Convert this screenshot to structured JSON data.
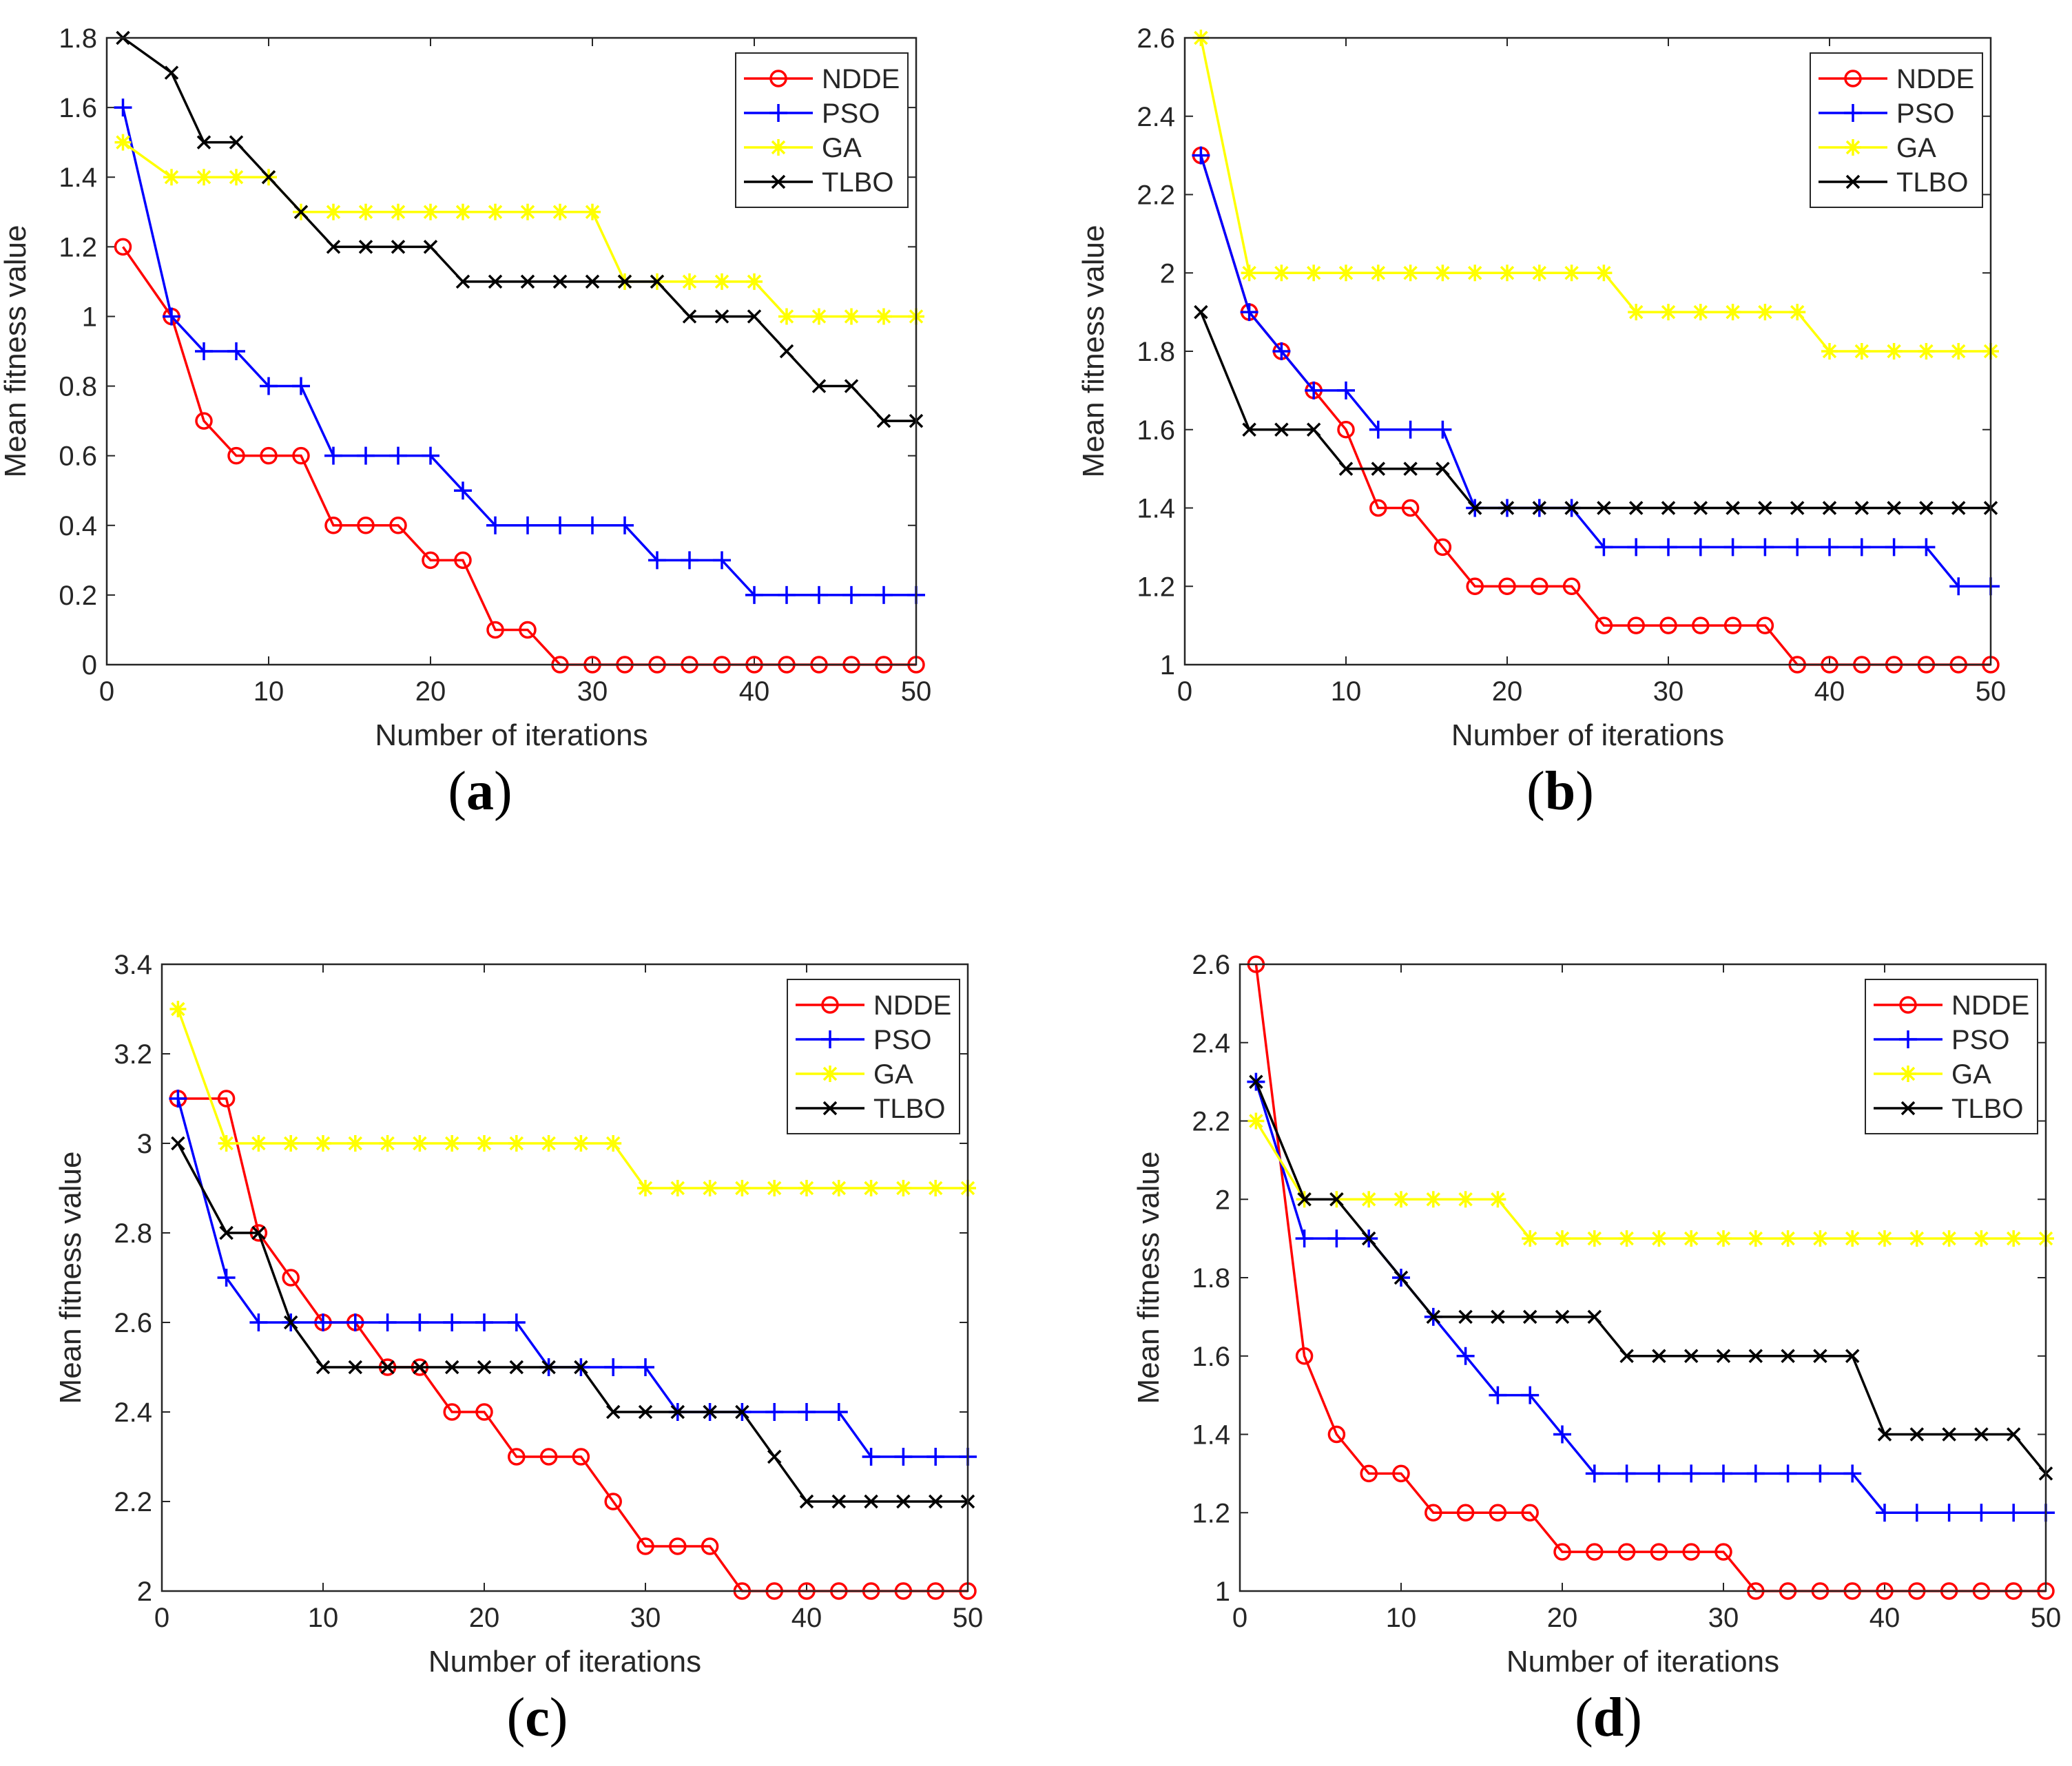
{
  "chart_data": [
    {
      "panel": "a",
      "caption": {
        "open": "(",
        "letter": "a",
        "close": ")"
      },
      "type": "line",
      "xlabel": "Number of iterations",
      "ylabel": "Mean fitness value",
      "xlim": [
        0,
        50
      ],
      "ylim": [
        0,
        1.8
      ],
      "xticks": [
        0,
        10,
        20,
        30,
        40,
        50
      ],
      "yticks": [
        0,
        0.2,
        0.4,
        0.6,
        0.8,
        1,
        1.2,
        1.4,
        1.6,
        1.8
      ],
      "ytick_labels": [
        "0",
        "0.2",
        "0.4",
        "0.6",
        "0.8",
        "1",
        "1.2",
        "1.4",
        "1.6",
        "1.8"
      ],
      "legend_position": "top-right",
      "x": [
        1,
        4,
        6,
        8,
        10,
        12,
        14,
        16,
        18,
        20,
        22,
        24,
        26,
        28,
        30,
        32,
        34,
        36,
        38,
        40,
        42,
        44,
        46,
        48,
        50
      ],
      "series": [
        {
          "name": "NDDE",
          "color": "#ff0000",
          "marker": "circle",
          "values": [
            1.2,
            1.0,
            0.7,
            0.6,
            0.6,
            0.6,
            0.4,
            0.4,
            0.4,
            0.3,
            0.3,
            0.1,
            0.1,
            0,
            0,
            0,
            0,
            0,
            0,
            0,
            0,
            0,
            0,
            0,
            0
          ]
        },
        {
          "name": "PSO",
          "color": "#0000ff",
          "marker": "plus",
          "values": [
            1.6,
            1.0,
            0.9,
            0.9,
            0.8,
            0.8,
            0.6,
            0.6,
            0.6,
            0.6,
            0.5,
            0.4,
            0.4,
            0.4,
            0.4,
            0.4,
            0.3,
            0.3,
            0.3,
            0.2,
            0.2,
            0.2,
            0.2,
            0.2,
            0.2
          ]
        },
        {
          "name": "GA",
          "color": "#ffff00",
          "marker": "star",
          "values": [
            1.5,
            1.4,
            1.4,
            1.4,
            1.4,
            1.3,
            1.3,
            1.3,
            1.3,
            1.3,
            1.3,
            1.3,
            1.3,
            1.3,
            1.3,
            1.1,
            1.1,
            1.1,
            1.1,
            1.1,
            1.0,
            1.0,
            1.0,
            1.0,
            1.0
          ]
        },
        {
          "name": "TLBO",
          "color": "#000000",
          "marker": "x",
          "values": [
            1.8,
            1.7,
            1.5,
            1.5,
            1.4,
            1.3,
            1.2,
            1.2,
            1.2,
            1.2,
            1.1,
            1.1,
            1.1,
            1.1,
            1.1,
            1.1,
            1.1,
            1.0,
            1.0,
            1.0,
            0.9,
            0.8,
            0.8,
            0.7,
            0.7
          ]
        }
      ]
    },
    {
      "panel": "b",
      "caption": {
        "open": "(",
        "letter": "b",
        "close": ")"
      },
      "type": "line",
      "xlabel": "Number of iterations",
      "ylabel": "Mean fitness value",
      "xlim": [
        0,
        50
      ],
      "ylim": [
        1,
        2.6
      ],
      "xticks": [
        0,
        10,
        20,
        30,
        40,
        50
      ],
      "yticks": [
        1,
        1.2,
        1.4,
        1.6,
        1.8,
        2,
        2.2,
        2.4,
        2.6
      ],
      "ytick_labels": [
        "1",
        "1.2",
        "1.4",
        "1.6",
        "1.8",
        "2",
        "2.2",
        "2.4",
        "2.6"
      ],
      "legend_position": "top-right",
      "x": [
        1,
        4,
        6,
        8,
        10,
        12,
        14,
        16,
        18,
        20,
        22,
        24,
        26,
        28,
        30,
        32,
        34,
        36,
        38,
        40,
        42,
        44,
        46,
        48,
        50
      ],
      "series": [
        {
          "name": "NDDE",
          "color": "#ff0000",
          "marker": "circle",
          "values": [
            2.3,
            1.9,
            1.8,
            1.7,
            1.6,
            1.4,
            1.4,
            1.3,
            1.2,
            1.2,
            1.2,
            1.2,
            1.1,
            1.1,
            1.1,
            1.1,
            1.1,
            1.1,
            1.0,
            1.0,
            1.0,
            1.0,
            1.0,
            1.0,
            1.0
          ]
        },
        {
          "name": "PSO",
          "color": "#0000ff",
          "marker": "plus",
          "values": [
            2.3,
            1.9,
            1.8,
            1.7,
            1.7,
            1.6,
            1.6,
            1.6,
            1.4,
            1.4,
            1.4,
            1.4,
            1.3,
            1.3,
            1.3,
            1.3,
            1.3,
            1.3,
            1.3,
            1.3,
            1.3,
            1.3,
            1.3,
            1.2,
            1.2
          ]
        },
        {
          "name": "GA",
          "color": "#ffff00",
          "marker": "star",
          "values": [
            2.6,
            2.0,
            2.0,
            2.0,
            2.0,
            2.0,
            2.0,
            2.0,
            2.0,
            2.0,
            2.0,
            2.0,
            2.0,
            1.9,
            1.9,
            1.9,
            1.9,
            1.9,
            1.9,
            1.8,
            1.8,
            1.8,
            1.8,
            1.8,
            1.8
          ]
        },
        {
          "name": "TLBO",
          "color": "#000000",
          "marker": "x",
          "values": [
            1.9,
            1.6,
            1.6,
            1.6,
            1.5,
            1.5,
            1.5,
            1.5,
            1.4,
            1.4,
            1.4,
            1.4,
            1.4,
            1.4,
            1.4,
            1.4,
            1.4,
            1.4,
            1.4,
            1.4,
            1.4,
            1.4,
            1.4,
            1.4,
            1.4
          ]
        }
      ]
    },
    {
      "panel": "c",
      "caption": {
        "open": "(",
        "letter": "c",
        "close": ")"
      },
      "type": "line",
      "xlabel": "Number of iterations",
      "ylabel": "Mean fitness value",
      "xlim": [
        0,
        50
      ],
      "ylim": [
        2,
        3.4
      ],
      "xticks": [
        0,
        10,
        20,
        30,
        40,
        50
      ],
      "yticks": [
        2,
        2.2,
        2.4,
        2.6,
        2.8,
        3,
        3.2,
        3.4
      ],
      "ytick_labels": [
        "2",
        "2.2",
        "2.4",
        "2.6",
        "2.8",
        "3",
        "3.2",
        "3.4"
      ],
      "legend_position": "top-right",
      "x": [
        1,
        4,
        6,
        8,
        10,
        12,
        14,
        16,
        18,
        20,
        22,
        24,
        26,
        28,
        30,
        32,
        34,
        36,
        38,
        40,
        42,
        44,
        46,
        48,
        50
      ],
      "series": [
        {
          "name": "NDDE",
          "color": "#ff0000",
          "marker": "circle",
          "values": [
            3.1,
            3.1,
            2.8,
            2.7,
            2.6,
            2.6,
            2.5,
            2.5,
            2.4,
            2.4,
            2.3,
            2.3,
            2.3,
            2.2,
            2.1,
            2.1,
            2.1,
            2.0,
            2.0,
            2.0,
            2.0,
            2.0,
            2.0,
            2.0,
            2.0
          ]
        },
        {
          "name": "PSO",
          "color": "#0000ff",
          "marker": "plus",
          "values": [
            3.1,
            2.7,
            2.6,
            2.6,
            2.6,
            2.6,
            2.6,
            2.6,
            2.6,
            2.6,
            2.6,
            2.5,
            2.5,
            2.5,
            2.5,
            2.4,
            2.4,
            2.4,
            2.4,
            2.4,
            2.4,
            2.3,
            2.3,
            2.3,
            2.3
          ]
        },
        {
          "name": "GA",
          "color": "#ffff00",
          "marker": "star",
          "values": [
            3.3,
            3.0,
            3.0,
            3.0,
            3.0,
            3.0,
            3.0,
            3.0,
            3.0,
            3.0,
            3.0,
            3.0,
            3.0,
            3.0,
            2.9,
            2.9,
            2.9,
            2.9,
            2.9,
            2.9,
            2.9,
            2.9,
            2.9,
            2.9,
            2.9
          ]
        },
        {
          "name": "TLBO",
          "color": "#000000",
          "marker": "x",
          "values": [
            3.0,
            2.8,
            2.8,
            2.6,
            2.5,
            2.5,
            2.5,
            2.5,
            2.5,
            2.5,
            2.5,
            2.5,
            2.5,
            2.4,
            2.4,
            2.4,
            2.4,
            2.4,
            2.3,
            2.2,
            2.2,
            2.2,
            2.2,
            2.2,
            2.2
          ]
        }
      ]
    },
    {
      "panel": "d",
      "caption": {
        "open": "(",
        "letter": "d",
        "close": ")"
      },
      "type": "line",
      "xlabel": "Number of iterations",
      "ylabel": "Mean fitness value",
      "xlim": [
        0,
        50
      ],
      "ylim": [
        1,
        2.6
      ],
      "xticks": [
        0,
        10,
        20,
        30,
        40,
        50
      ],
      "yticks": [
        1,
        1.2,
        1.4,
        1.6,
        1.8,
        2,
        2.2,
        2.4,
        2.6
      ],
      "ytick_labels": [
        "1",
        "1.2",
        "1.4",
        "1.6",
        "1.8",
        "2",
        "2.2",
        "2.4",
        "2.6"
      ],
      "legend_position": "top-right",
      "x": [
        1,
        4,
        6,
        8,
        10,
        12,
        14,
        16,
        18,
        20,
        22,
        24,
        26,
        28,
        30,
        32,
        34,
        36,
        38,
        40,
        42,
        44,
        46,
        48,
        50
      ],
      "series": [
        {
          "name": "NDDE",
          "color": "#ff0000",
          "marker": "circle",
          "values": [
            2.6,
            1.6,
            1.4,
            1.3,
            1.3,
            1.2,
            1.2,
            1.2,
            1.2,
            1.1,
            1.1,
            1.1,
            1.1,
            1.1,
            1.1,
            1.0,
            1.0,
            1.0,
            1.0,
            1.0,
            1.0,
            1.0,
            1.0,
            1.0,
            1.0
          ]
        },
        {
          "name": "PSO",
          "color": "#0000ff",
          "marker": "plus",
          "values": [
            2.3,
            1.9,
            1.9,
            1.9,
            1.8,
            1.7,
            1.6,
            1.5,
            1.5,
            1.4,
            1.3,
            1.3,
            1.3,
            1.3,
            1.3,
            1.3,
            1.3,
            1.3,
            1.3,
            1.2,
            1.2,
            1.2,
            1.2,
            1.2,
            1.2
          ]
        },
        {
          "name": "GA",
          "color": "#ffff00",
          "marker": "star",
          "values": [
            2.2,
            2.0,
            2.0,
            2.0,
            2.0,
            2.0,
            2.0,
            2.0,
            1.9,
            1.9,
            1.9,
            1.9,
            1.9,
            1.9,
            1.9,
            1.9,
            1.9,
            1.9,
            1.9,
            1.9,
            1.9,
            1.9,
            1.9,
            1.9,
            1.9
          ]
        },
        {
          "name": "TLBO",
          "color": "#000000",
          "marker": "x",
          "values": [
            2.3,
            2.0,
            2.0,
            1.9,
            1.8,
            1.7,
            1.7,
            1.7,
            1.7,
            1.7,
            1.7,
            1.6,
            1.6,
            1.6,
            1.6,
            1.6,
            1.6,
            1.6,
            1.6,
            1.4,
            1.4,
            1.4,
            1.4,
            1.4,
            1.3
          ]
        }
      ]
    }
  ]
}
